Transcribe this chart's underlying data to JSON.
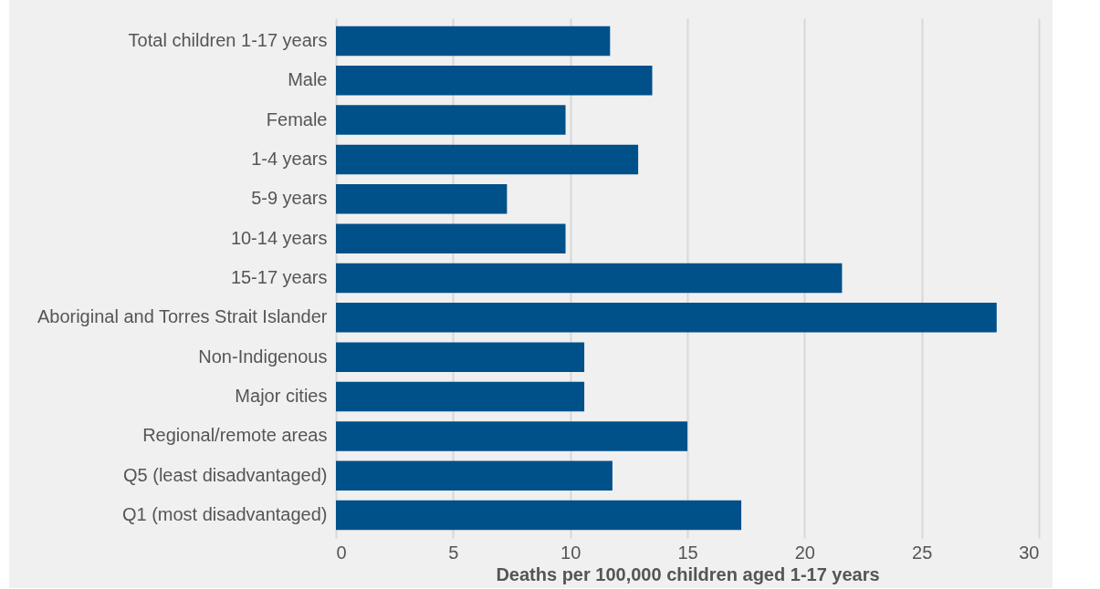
{
  "chart_data": {
    "type": "bar",
    "orientation": "horizontal",
    "xlabel": "Deaths per 100,000 children aged 1-17 years",
    "categories": [
      "Total children 1-17 years",
      "Male",
      "Female",
      "1-4 years",
      "5-9 years",
      "10-14 years",
      "15-17 years",
      "Aboriginal and Torres Strait Islander",
      "Non-Indigenous",
      "Major cities",
      "Regional/remote areas",
      "Q5 (least disadvantaged)",
      "Q1 (most disadvantaged)"
    ],
    "values": [
      11.7,
      13.5,
      9.8,
      12.9,
      7.3,
      9.8,
      21.6,
      28.2,
      10.6,
      10.6,
      15.0,
      11.8,
      17.3
    ],
    "color": "#00508a",
    "xlim": [
      0,
      30
    ],
    "xticks": [
      0,
      5,
      10,
      15,
      20,
      25,
      30
    ],
    "grid": "x"
  }
}
